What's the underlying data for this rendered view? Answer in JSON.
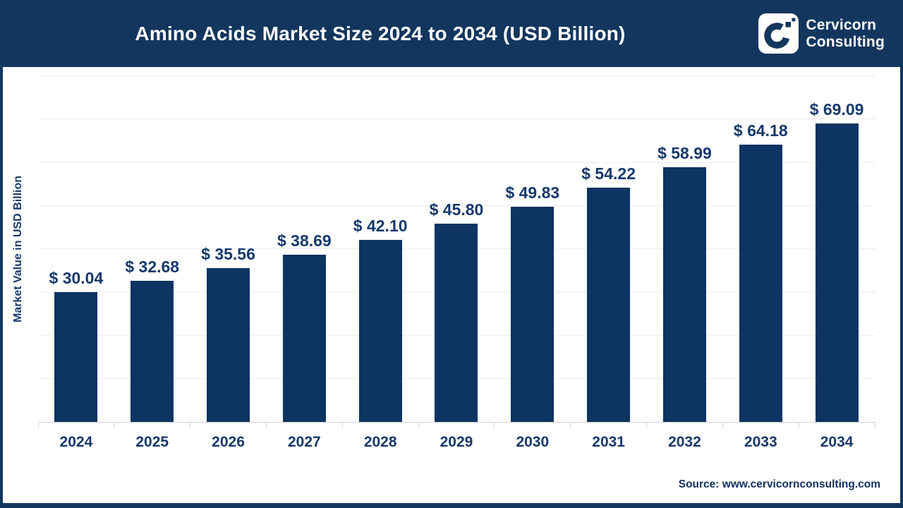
{
  "header": {
    "brand": {
      "line1": "Cervicorn",
      "line2": "Consulting"
    }
  },
  "chart_data": {
    "type": "bar",
    "title": "Amino Acids Market Size 2024 to 2034 (USD Billion)",
    "ylabel": "Market Value in USD Billion",
    "categories": [
      "2024",
      "2025",
      "2026",
      "2027",
      "2028",
      "2029",
      "2030",
      "2031",
      "2032",
      "2033",
      "2034"
    ],
    "values": [
      30.04,
      32.68,
      35.56,
      38.69,
      42.1,
      45.8,
      49.83,
      54.22,
      58.99,
      64.18,
      69.09
    ],
    "value_labels": [
      "$ 30.04",
      "$ 32.68",
      "$ 35.56",
      "$ 38.69",
      "$ 42.10",
      "$ 45.80",
      "$ 49.83",
      "$ 54.22",
      "$ 58.99",
      "$ 64.18",
      "$ 69.09"
    ],
    "ylim": [
      0,
      80
    ],
    "gridline_step": 10,
    "grid": "horizontal",
    "legend": "none"
  },
  "source": {
    "text": "Source: www.cervicornconsulting.com"
  },
  "colors": {
    "header_bg": "#13365e",
    "border": "#13365e",
    "bar": "#0d3462",
    "text_navy": "#17396b",
    "title_text": "#ffffff",
    "gridline": "#ebebeb",
    "axis": "#d2d2d2",
    "source_text": "#12305e"
  }
}
